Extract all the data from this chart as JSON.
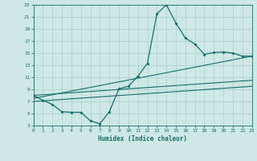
{
  "xlabel": "Humidex (Indice chaleur)",
  "xlim": [
    0,
    23
  ],
  "ylim": [
    3,
    23
  ],
  "xticks": [
    0,
    1,
    2,
    3,
    4,
    5,
    6,
    7,
    8,
    9,
    10,
    11,
    12,
    13,
    14,
    15,
    16,
    17,
    18,
    19,
    20,
    21,
    22,
    23
  ],
  "yticks": [
    3,
    5,
    7,
    9,
    11,
    13,
    15,
    17,
    19,
    21,
    23
  ],
  "bg_color": "#cde8e5",
  "grid_color": "#aacfcc",
  "line_color": "#1a6b6b",
  "curve1_x": [
    0,
    1,
    2,
    3,
    4,
    5,
    6,
    7,
    8,
    9,
    10,
    11,
    12,
    13,
    14,
    15,
    16,
    17,
    18,
    19,
    20,
    21,
    22,
    23
  ],
  "curve1_y": [
    8.0,
    7.2,
    6.5,
    5.3,
    5.2,
    5.2,
    3.8,
    3.3,
    5.3,
    9.1,
    9.5,
    11.2,
    13.3,
    21.5,
    23.0,
    20.0,
    17.5,
    16.5,
    14.8,
    15.1,
    15.2,
    15.0,
    14.5,
    14.5
  ],
  "line1_x": [
    0,
    23
  ],
  "line1_y": [
    8.0,
    10.5
  ],
  "line2_x": [
    0,
    23
  ],
  "line2_y": [
    7.5,
    14.5
  ],
  "line3_x": [
    0,
    23
  ],
  "line3_y": [
    7.0,
    9.5
  ]
}
